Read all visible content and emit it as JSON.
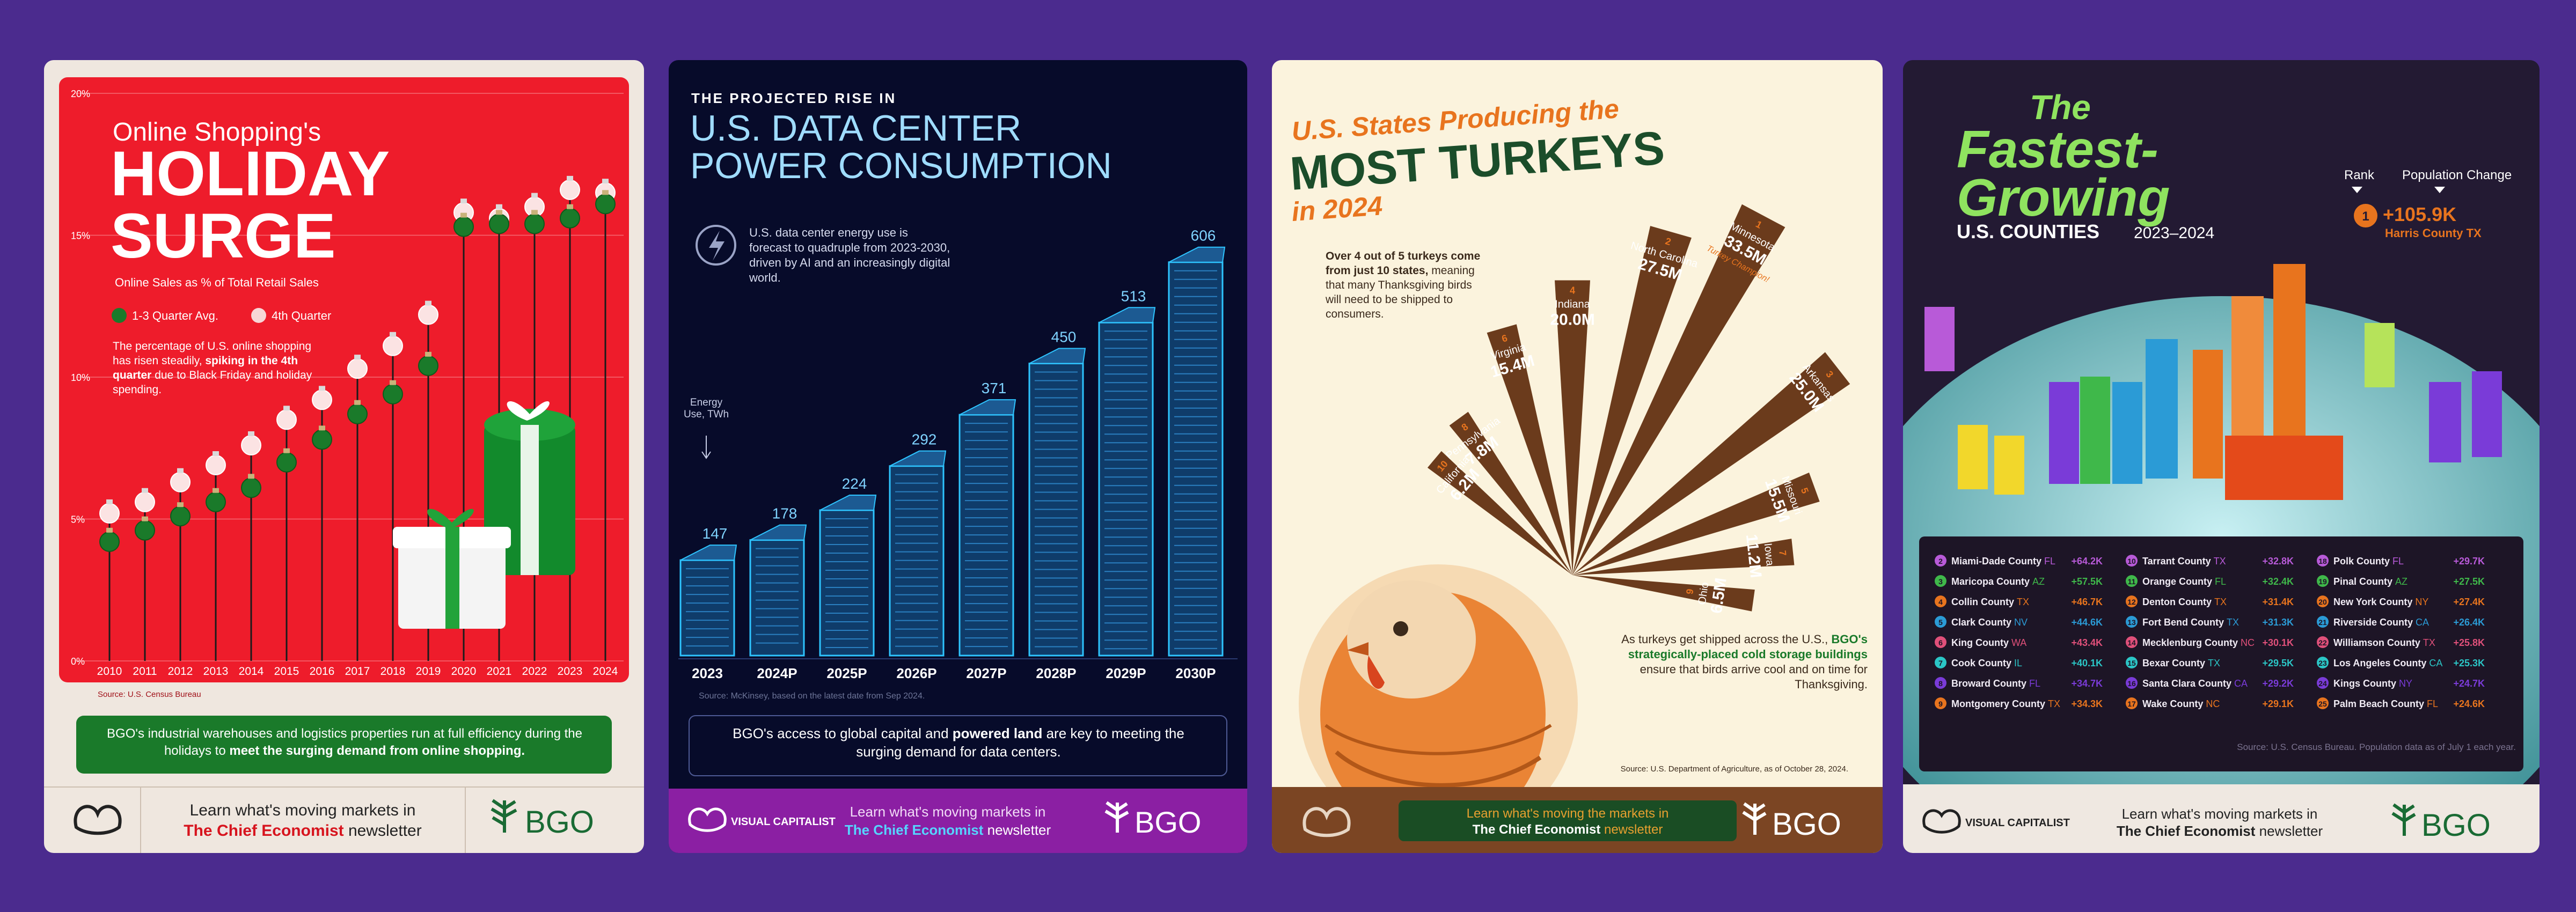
{
  "colors": {
    "background": "#4b2b8e",
    "red": "#ee1c2b",
    "green": "#1a7a2a",
    "navy": "#070b2a",
    "cyan": "#2ec4ff",
    "brown": "#6b3b1c",
    "orange": "#e8741e",
    "cream": "#fbf3dd",
    "dark": "#231a33",
    "lime": "#7de35a"
  },
  "panel1": {
    "title_line1": "Online Shopping's",
    "title_line2": "HOLIDAY",
    "title_line3": "SURGE",
    "subtitle": "Online Sales as % of Total Retail Sales",
    "legend_q": "1-3 Quarter Avg.",
    "legend_q4": "4th Quarter",
    "desc_plain1": "The percentage of U.S. online shopping has risen steadily,",
    "desc_bold": "spiking in the 4th quarter",
    "desc_plain2": "due to Black Friday and holiday spending.",
    "source": "Source: U.S. Census Bureau",
    "banner_plain": "BGO's industrial warehouses and logistics properties run at full efficiency during the holidays to",
    "banner_bold": "meet the surging demand from online shopping.",
    "footer_learn": "Learn what's moving markets in",
    "footer_brand": "The Chief Economist",
    "footer_newsletter": "newsletter",
    "logo_text": "BGO",
    "chart_data": {
      "type": "line",
      "categories": [
        "2010",
        "2011",
        "2012",
        "2013",
        "2014",
        "2015",
        "2016",
        "2017",
        "2018",
        "2019",
        "2020",
        "2021",
        "2022",
        "2023",
        "2024"
      ],
      "series": [
        {
          "name": "1-3 Quarter Avg.",
          "values": [
            4.2,
            4.6,
            5.1,
            5.6,
            6.1,
            7.0,
            7.8,
            8.7,
            9.4,
            10.4,
            15.3,
            15.4,
            15.4,
            15.6,
            16.1
          ]
        },
        {
          "name": "4th Quarter",
          "values": [
            5.2,
            5.6,
            6.3,
            6.9,
            7.6,
            8.5,
            9.2,
            10.3,
            11.1,
            12.2,
            15.8,
            15.6,
            16.0,
            16.6,
            16.5
          ]
        }
      ],
      "yticks": [
        "0%",
        "5%",
        "10%",
        "15%",
        "20%"
      ],
      "ylim": [
        0,
        20
      ]
    }
  },
  "panel2": {
    "kicker": "THE PROJECTED RISE IN",
    "title_line1": "U.S. DATA CENTER",
    "title_line2": "POWER CONSUMPTION",
    "desc": "U.S. data center energy use is forecast to quadruple from 2023-2030, driven by AI and an increasingly digital world.",
    "axis_note": "Energy Use, TWh",
    "source": "Source: McKinsey, based on the latest date from Sep 2024.",
    "banner_plain1": "BGO's access to global capital and",
    "banner_bold": "powered land",
    "banner_plain2": "are key to meeting the surging demand for data centers.",
    "footer_vc": "VISUAL CAPITALIST",
    "footer_learn": "Learn what's moving markets in",
    "footer_brand": "The Chief Economist",
    "footer_newsletter": "newsletter",
    "logo_text": "BGO",
    "chart_data": {
      "type": "bar",
      "categories": [
        "2023",
        "2024P",
        "2025P",
        "2026P",
        "2027P",
        "2028P",
        "2029P",
        "2030P"
      ],
      "values": [
        147,
        178,
        224,
        292,
        371,
        450,
        513,
        606
      ],
      "ylabel": "Energy Use, TWh"
    }
  },
  "panel3": {
    "title_line1": "U.S. States Producing the",
    "title_line2": "MOST TURKEYS",
    "title_line3": "in 2024",
    "desc_bold": "Over 4 out of 5 turkeys come from just 10 states,",
    "desc_plain": "meaning that many Thanksgiving birds will need to be shipped to consumers.",
    "bottom_plain1": "As turkeys get shipped across the U.S.,",
    "bottom_bold": "BGO's strategically-placed cold storage buildings",
    "bottom_plain2": "ensure that birds arrive cool and on time for Thanksgiving.",
    "source": "Source: U.S. Department of Agriculture, as of October 28, 2024.",
    "footer_learn": "Learn what's moving the markets in",
    "footer_brand": "The Chief Economist",
    "footer_newsletter": "newsletter",
    "logo_text": "BGO",
    "chart_data": {
      "type": "bar",
      "categories": [
        "Minnesota",
        "North Carolina",
        "Arkansas",
        "Indiana",
        "Missouri",
        "Virginia",
        "Iowa",
        "Pennsylvania",
        "Ohio",
        "California"
      ],
      "ranks": [
        "1",
        "2",
        "3",
        "4",
        "5",
        "6",
        "7",
        "8",
        "9",
        "10"
      ],
      "values": [
        33.5,
        27.5,
        25.0,
        20.0,
        15.5,
        15.4,
        11.2,
        7.8,
        6.5,
        6.2
      ],
      "labels": [
        "33.5M",
        "27.5M",
        "25.0M",
        "20.0M",
        "15.5M",
        "15.4M",
        "11.2M",
        "7.8M",
        "6.5M",
        "6.2M"
      ],
      "note_minnesota": "Turkey Champion!"
    }
  },
  "panel4": {
    "title_line1": "The",
    "title_line2": "Fastest-",
    "title_line3": "Growing",
    "title_line4": "U.S. COUNTIES",
    "years": "2023–2024",
    "rank_label": "Rank",
    "pop_label": "Population Change",
    "top_rank": "1",
    "top_value": "+105.9K",
    "top_county": "Harris County",
    "top_state": "TX",
    "source": "Source: U.S. Census Bureau. Population data as of July 1 each year.",
    "footer_vc": "VISUAL CAPITALIST",
    "footer_learn": "Learn what's moving markets in",
    "footer_brand": "The Chief Economist",
    "footer_newsletter": "newsletter",
    "logo_text": "BGO",
    "table": [
      {
        "rank": "2",
        "county": "Miami-Dade County",
        "state": "FL",
        "value": "+64.2K"
      },
      {
        "rank": "3",
        "county": "Maricopa County",
        "state": "AZ",
        "value": "+57.5K"
      },
      {
        "rank": "4",
        "county": "Collin County",
        "state": "TX",
        "value": "+46.7K"
      },
      {
        "rank": "5",
        "county": "Clark County",
        "state": "NV",
        "value": "+44.6K"
      },
      {
        "rank": "6",
        "county": "King County",
        "state": "WA",
        "value": "+43.4K"
      },
      {
        "rank": "7",
        "county": "Cook County",
        "state": "IL",
        "value": "+40.1K"
      },
      {
        "rank": "8",
        "county": "Broward County",
        "state": "FL",
        "value": "+34.7K"
      },
      {
        "rank": "9",
        "county": "Montgomery County",
        "state": "TX",
        "value": "+34.3K"
      },
      {
        "rank": "10",
        "county": "Tarrant County",
        "state": "TX",
        "value": "+32.8K"
      },
      {
        "rank": "11",
        "county": "Orange County",
        "state": "FL",
        "value": "+32.4K"
      },
      {
        "rank": "12",
        "county": "Denton County",
        "state": "TX",
        "value": "+31.4K"
      },
      {
        "rank": "13",
        "county": "Fort Bend County",
        "state": "TX",
        "value": "+31.3K"
      },
      {
        "rank": "14",
        "county": "Mecklenburg County",
        "state": "NC",
        "value": "+30.1K"
      },
      {
        "rank": "15",
        "county": "Bexar County",
        "state": "TX",
        "value": "+29.5K"
      },
      {
        "rank": "16",
        "county": "Santa Clara County",
        "state": "CA",
        "value": "+29.2K"
      },
      {
        "rank": "17",
        "county": "Wake County",
        "state": "NC",
        "value": "+29.1K"
      },
      {
        "rank": "18",
        "county": "Polk County",
        "state": "FL",
        "value": "+29.7K"
      },
      {
        "rank": "19",
        "county": "Pinal County",
        "state": "AZ",
        "value": "+27.5K"
      },
      {
        "rank": "20",
        "county": "New York County",
        "state": "NY",
        "value": "+27.4K"
      },
      {
        "rank": "21",
        "county": "Riverside County",
        "state": "CA",
        "value": "+26.4K"
      },
      {
        "rank": "22",
        "county": "Williamson County",
        "state": "TX",
        "value": "+25.8K"
      },
      {
        "rank": "23",
        "county": "Los Angeles County",
        "state": "CA",
        "value": "+25.3K"
      },
      {
        "rank": "24",
        "county": "Kings County",
        "state": "NY",
        "value": "+24.7K"
      },
      {
        "rank": "25",
        "county": "Palm Beach County",
        "state": "FL",
        "value": "+24.6K"
      }
    ]
  }
}
